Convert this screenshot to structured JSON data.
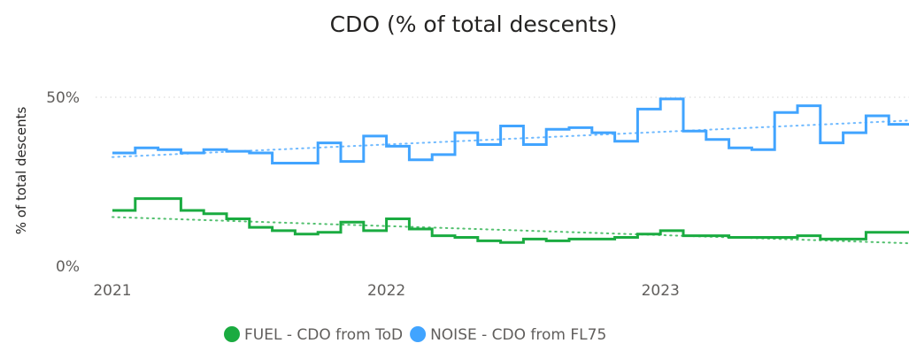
{
  "chart_data": {
    "type": "line",
    "title": "CDO (% of total descents)",
    "xlabel": "",
    "ylabel": "% of total descents",
    "x_ticks": [
      "2021",
      "2022",
      "2023"
    ],
    "y_ticks": [
      "0%",
      "50%"
    ],
    "ylim": [
      0,
      55
    ],
    "y_unit": "%",
    "grid": "horizontal dotted",
    "line_shape": "step",
    "trend_lines": "dotted linear trend per series",
    "legend_position": "bottom-center",
    "x": [
      "2021-01",
      "2021-02",
      "2021-03",
      "2021-04",
      "2021-05",
      "2021-06",
      "2021-07",
      "2021-08",
      "2021-09",
      "2021-10",
      "2021-11",
      "2021-12",
      "2022-01",
      "2022-02",
      "2022-03",
      "2022-04",
      "2022-05",
      "2022-06",
      "2022-07",
      "2022-08",
      "2022-09",
      "2022-10",
      "2022-11",
      "2022-12",
      "2023-01",
      "2023-02",
      "2023-03",
      "2023-04",
      "2023-05",
      "2023-06",
      "2023-07",
      "2023-08",
      "2023-09",
      "2023-10",
      "2023-11",
      "2023-12"
    ],
    "series": [
      {
        "name": "FUEL - CDO from ToD",
        "color": "#1aab40",
        "values": [
          16.5,
          20,
          20,
          16.5,
          15.5,
          14,
          11.5,
          10.5,
          9.5,
          10,
          13,
          10.5,
          14,
          11,
          9,
          8.5,
          7.5,
          7,
          8,
          7.5,
          8,
          8,
          8.5,
          9.5,
          10.5,
          9,
          9,
          8.5,
          8.5,
          8.5,
          9,
          8,
          8,
          10,
          10,
          10
        ]
      },
      {
        "name": "NOISE - CDO from FL75",
        "color": "#41a4ff",
        "values": [
          33.5,
          35,
          34.5,
          33.5,
          34.5,
          34,
          33.5,
          30.5,
          30.5,
          36.5,
          31,
          38.5,
          35.5,
          31.5,
          33,
          39.5,
          36,
          41.5,
          36,
          40.5,
          41,
          39.5,
          37,
          46.5,
          49.5,
          40,
          37.5,
          35,
          34.5,
          45.5,
          47.5,
          36.5,
          39.5,
          44.5,
          42,
          43
        ]
      }
    ]
  }
}
